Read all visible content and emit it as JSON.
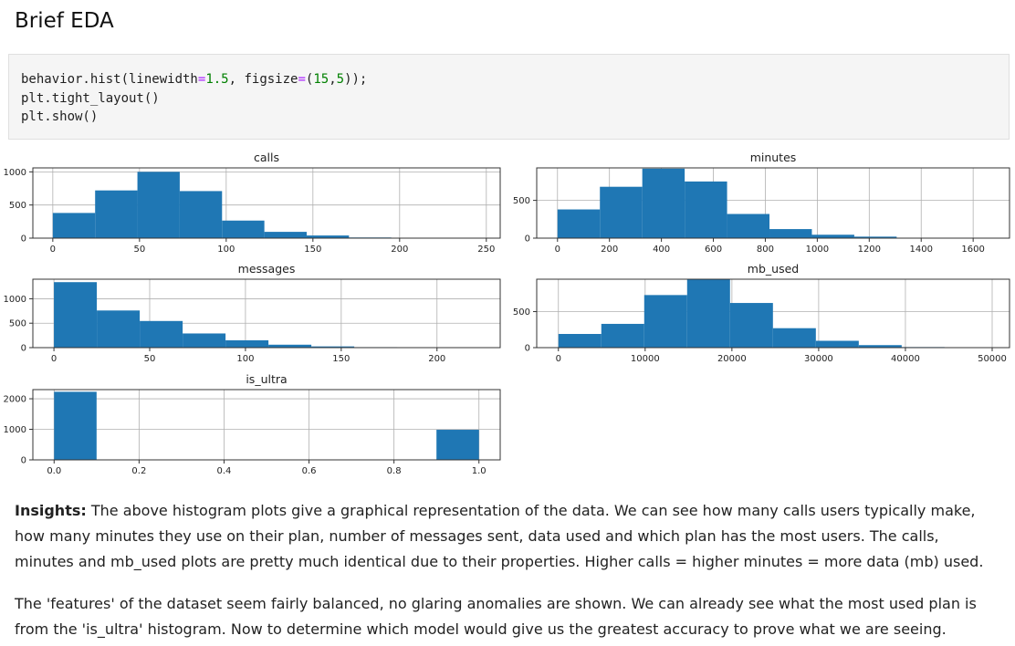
{
  "header": {
    "title": "Brief EDA"
  },
  "code": {
    "line1": {
      "a": "behavior.hist(linewidth",
      "eq1": "=",
      "n1": "1.5",
      "b": ", figsize",
      "eq2": "=",
      "c": "(",
      "n2": "15",
      "d": ",",
      "n3": "5",
      "e": "));"
    },
    "line2": "plt.tight_layout()",
    "line3": "plt.show()"
  },
  "chart_data": [
    {
      "type": "bar",
      "title": "calls",
      "xlim": [
        -11.5,
        258
      ],
      "ylim": [
        0,
        1060
      ],
      "xticks": [
        0,
        50,
        100,
        150,
        200,
        250
      ],
      "yticks": [
        0,
        500,
        1000
      ],
      "bin_edges": [
        0,
        24.4,
        48.8,
        73.2,
        97.6,
        122,
        146.4,
        170.8,
        195.2,
        219.6,
        244
      ],
      "values": [
        380,
        720,
        1000,
        710,
        265,
        95,
        40,
        10,
        3,
        1
      ],
      "grid": true,
      "color": "#1f77b4"
    },
    {
      "type": "bar",
      "title": "minutes",
      "xlim": [
        -80,
        1740
      ],
      "ylim": [
        0,
        930
      ],
      "xticks": [
        0,
        200,
        400,
        600,
        800,
        1000,
        1200,
        1400,
        1600
      ],
      "yticks": [
        0,
        500
      ],
      "bin_edges": [
        0,
        163.2,
        326.4,
        489.6,
        652.8,
        816,
        979.2,
        1142.4,
        1305.6,
        1468.8,
        1632
      ],
      "values": [
        380,
        680,
        920,
        750,
        320,
        120,
        45,
        20,
        3,
        1
      ],
      "grid": true,
      "color": "#1f77b4"
    },
    {
      "type": "bar",
      "title": "messages",
      "xlim": [
        -11,
        233
      ],
      "ylim": [
        0,
        1400
      ],
      "xticks": [
        0,
        50,
        100,
        150,
        200
      ],
      "yticks": [
        0,
        500,
        1000
      ],
      "bin_edges": [
        0,
        22.4,
        44.8,
        67.2,
        89.6,
        112,
        134.4,
        156.8,
        179.2,
        201.6,
        224
      ],
      "values": [
        1340,
        760,
        545,
        290,
        150,
        60,
        25,
        10,
        3,
        1
      ],
      "grid": true,
      "color": "#1f77b4"
    },
    {
      "type": "bar",
      "title": "mb_used",
      "xlim": [
        -2500,
        52000
      ],
      "ylim": [
        0,
        950
      ],
      "xticks": [
        0,
        10000,
        20000,
        30000,
        40000,
        50000
      ],
      "yticks": [
        0,
        500
      ],
      "bin_edges": [
        0,
        4946,
        9892,
        14838,
        19784,
        24730,
        29676,
        34622,
        39568,
        44514,
        49460
      ],
      "values": [
        190,
        330,
        730,
        950,
        620,
        270,
        95,
        35,
        8,
        2
      ],
      "grid": true,
      "color": "#1f77b4"
    },
    {
      "type": "bar",
      "title": "is_ultra",
      "xlim": [
        -0.05,
        1.05
      ],
      "ylim": [
        0,
        2300
      ],
      "xticks": [
        0.0,
        0.2,
        0.4,
        0.6,
        0.8,
        1.0
      ],
      "xtick_labels": [
        "0.0",
        "0.2",
        "0.4",
        "0.6",
        "0.8",
        "1.0"
      ],
      "yticks": [
        0,
        1000,
        2000
      ],
      "bin_edges": [
        0,
        0.1,
        0.2,
        0.3,
        0.4,
        0.5,
        0.6,
        0.7,
        0.8,
        0.9,
        1.0
      ],
      "values": [
        2229,
        0,
        0,
        0,
        0,
        0,
        0,
        0,
        0,
        985
      ],
      "grid": true,
      "color": "#1f77b4"
    }
  ],
  "insights": {
    "label": "Insights:",
    "p1": " The above histogram plots give a graphical representation of the data. We can see how many calls users typically make, how many minutes they use on their plan, number of messages sent, data used and which plan has the most users. The calls, minutes and mb_used plots are pretty much identical due to their properties. Higher calls = higher minutes = more data (mb) used.",
    "p2": "The 'features' of the dataset seem fairly balanced, no glaring anomalies are shown. We can already see what the most used plan is from the 'is_ultra' histogram. Now to determine which model would give us the greatest accuracy to prove what we are seeing."
  }
}
